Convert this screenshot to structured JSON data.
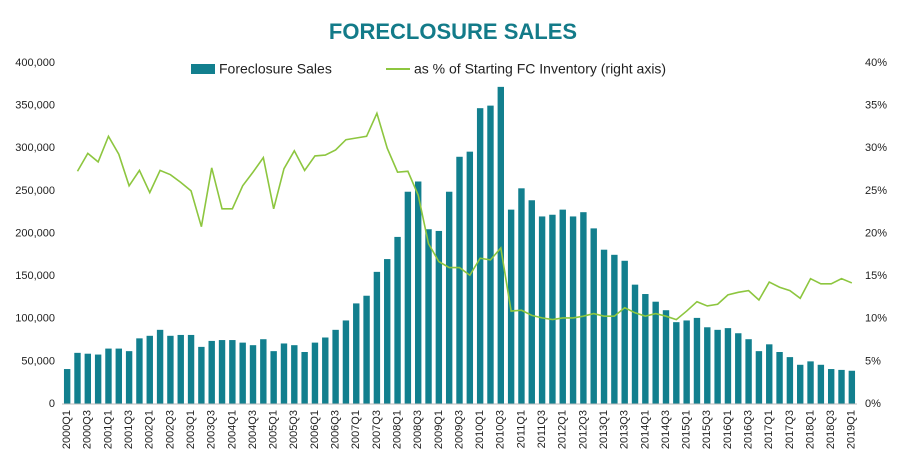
{
  "chart_data": {
    "type": "bar_line",
    "title": "FORECLOSURE SALES",
    "legend": "top",
    "categories": [
      "2000Q1",
      null,
      "2000Q3",
      null,
      "2001Q1",
      null,
      "2001Q3",
      null,
      "2002Q1",
      null,
      "2002Q3",
      null,
      "2003Q1",
      null,
      "2003Q3",
      null,
      "2004Q1",
      null,
      "2004Q3",
      null,
      "2005Q1",
      null,
      "2005Q3",
      null,
      "2006Q1",
      null,
      "2006Q3",
      null,
      "2007Q1",
      null,
      "2007Q3",
      null,
      "2008Q1",
      null,
      "2008Q3",
      null,
      "2009Q1",
      null,
      "2009Q3",
      null,
      "2010Q1",
      null,
      "2010Q3",
      null,
      "2011Q1",
      null,
      "2011Q3",
      null,
      "2012Q1",
      null,
      "2012Q3",
      null,
      "2013Q1",
      null,
      "2013Q3",
      null,
      "2014Q1",
      null,
      "2014Q3",
      null,
      "2015Q1",
      null,
      "2015Q3",
      null,
      "2016Q1",
      null,
      "2016Q3",
      null,
      "2017Q1",
      null,
      "2017Q3",
      null,
      "2018Q1",
      null,
      "2018Q3",
      null,
      "2019Q1"
    ],
    "series": [
      {
        "name": "Foreclosure Sales",
        "type": "bar",
        "color": "#127f8e",
        "values": [
          41000,
          60000,
          59000,
          58000,
          65000,
          65000,
          62000,
          77000,
          80000,
          87000,
          80000,
          81000,
          81000,
          67000,
          74000,
          75000,
          75000,
          72000,
          69000,
          76000,
          62000,
          71000,
          69000,
          61000,
          72000,
          78000,
          87000,
          98000,
          118000,
          127000,
          155000,
          170000,
          196000,
          249000,
          261000,
          205000,
          203000,
          249000,
          290000,
          296000,
          347000,
          350000,
          372000,
          228000,
          253000,
          239000,
          220000,
          222000,
          228000,
          220000,
          225000,
          206000,
          181000,
          175000,
          168000,
          140000,
          129000,
          120000,
          110000,
          96000,
          98000,
          101000,
          90000,
          87000,
          89000,
          83000,
          76000,
          62000,
          70000,
          61000,
          55000,
          46000,
          50000,
          46000,
          41000,
          40000,
          39000
        ]
      },
      {
        "name": "as % of Starting FC Inventory (right axis)",
        "type": "line",
        "color": "#8dc63f",
        "axis": "y2",
        "values": [
          null,
          27.3,
          29.4,
          28.4,
          31.4,
          29.3,
          25.6,
          27.4,
          24.8,
          27.4,
          26.9,
          26.0,
          25.0,
          20.8,
          27.7,
          22.9,
          22.9,
          25.6,
          27.2,
          28.9,
          22.9,
          27.6,
          29.7,
          27.4,
          29.1,
          29.2,
          29.8,
          31.0,
          31.2,
          31.4,
          34.1,
          30.0,
          27.2,
          27.3,
          24.5,
          18.8,
          16.7,
          16.0,
          16.0,
          15.1,
          17.1,
          16.9,
          18.3,
          10.9,
          11.0,
          10.4,
          10.1,
          9.9,
          10.1,
          10.1,
          10.3,
          10.6,
          10.3,
          10.3,
          11.3,
          10.7,
          10.3,
          10.6,
          10.3,
          9.9,
          10.9,
          12.0,
          11.5,
          11.7,
          12.8,
          13.1,
          13.3,
          12.2,
          14.3,
          13.7,
          13.3,
          12.4,
          14.7,
          14.1,
          14.1,
          14.7,
          14.2
        ]
      }
    ],
    "ylim": [
      0,
      400000
    ],
    "yticks": [
      0,
      {
        "value": 50000,
        "label": "50,000"
      },
      {
        "value": 100000,
        "label": "100,000"
      },
      {
        "value": 150000,
        "label": "150,000"
      },
      {
        "value": 200000,
        "label": "200,000"
      },
      {
        "value": 250000,
        "label": "250,000"
      },
      {
        "value": 300000,
        "label": "300,000"
      },
      {
        "value": 350000,
        "label": "350,000"
      },
      {
        "value": 400000,
        "label": "400,000"
      }
    ],
    "y2lim": [
      0,
      40
    ],
    "y2ticks": [
      {
        "value": 0,
        "label": "0%"
      },
      {
        "value": 5,
        "label": "5%"
      },
      {
        "value": 10,
        "label": "10%"
      },
      {
        "value": 15,
        "label": "15%"
      },
      {
        "value": 20,
        "label": "20%"
      },
      {
        "value": 25,
        "label": "25%"
      },
      {
        "value": 30,
        "label": "30%"
      },
      {
        "value": 35,
        "label": "35%"
      },
      {
        "value": 40,
        "label": "40%"
      }
    ]
  }
}
